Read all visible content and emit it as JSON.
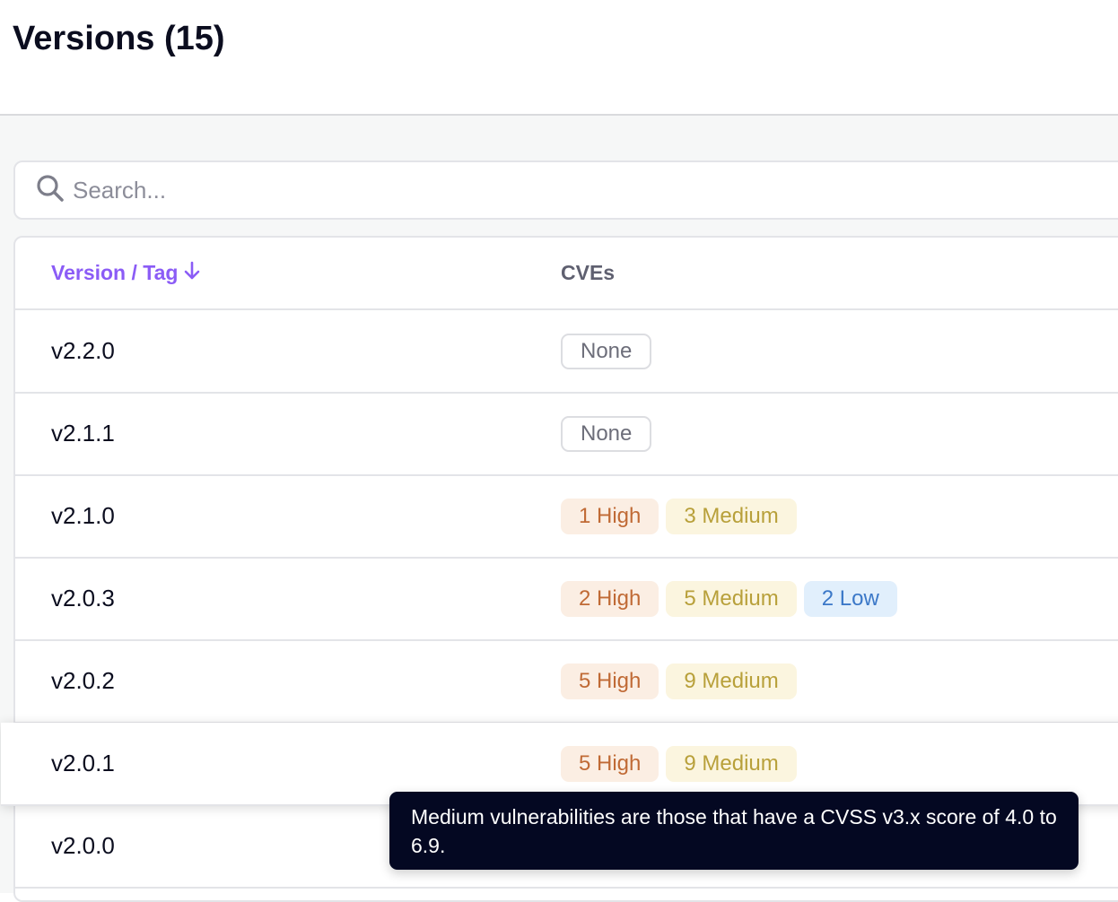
{
  "header": {
    "title": "Versions (15)"
  },
  "search": {
    "placeholder": "Search..."
  },
  "table": {
    "columns": [
      "Version / Tag",
      "CVEs"
    ],
    "sort": "descending",
    "rows": [
      {
        "version": "v2.2.0",
        "badges": [
          {
            "label": "None",
            "kind": "none"
          }
        ]
      },
      {
        "version": "v2.1.1",
        "badges": [
          {
            "label": "None",
            "kind": "none"
          }
        ]
      },
      {
        "version": "v2.1.0",
        "badges": [
          {
            "label": "1 High",
            "kind": "high"
          },
          {
            "label": "3 Medium",
            "kind": "medium"
          }
        ]
      },
      {
        "version": "v2.0.3",
        "badges": [
          {
            "label": "2 High",
            "kind": "high"
          },
          {
            "label": "5 Medium",
            "kind": "medium"
          },
          {
            "label": "2 Low",
            "kind": "low"
          }
        ]
      },
      {
        "version": "v2.0.2",
        "badges": [
          {
            "label": "5 High",
            "kind": "high"
          },
          {
            "label": "9 Medium",
            "kind": "medium"
          }
        ]
      },
      {
        "version": "v2.0.1",
        "badges": [
          {
            "label": "5 High",
            "kind": "high"
          },
          {
            "label": "9 Medium",
            "kind": "medium"
          }
        ],
        "hovered": true
      },
      {
        "version": "v2.0.0",
        "badges": []
      }
    ]
  },
  "tooltip": {
    "text": "Medium vulnerabilities are those that have a CVSS v3.x score of 4.0 to 6.9."
  },
  "colors": {
    "accent": "#8b5cf6",
    "high": "#c06a35",
    "medium": "#b8a03a",
    "low": "#3b78c8",
    "tooltip_bg": "#040822"
  }
}
